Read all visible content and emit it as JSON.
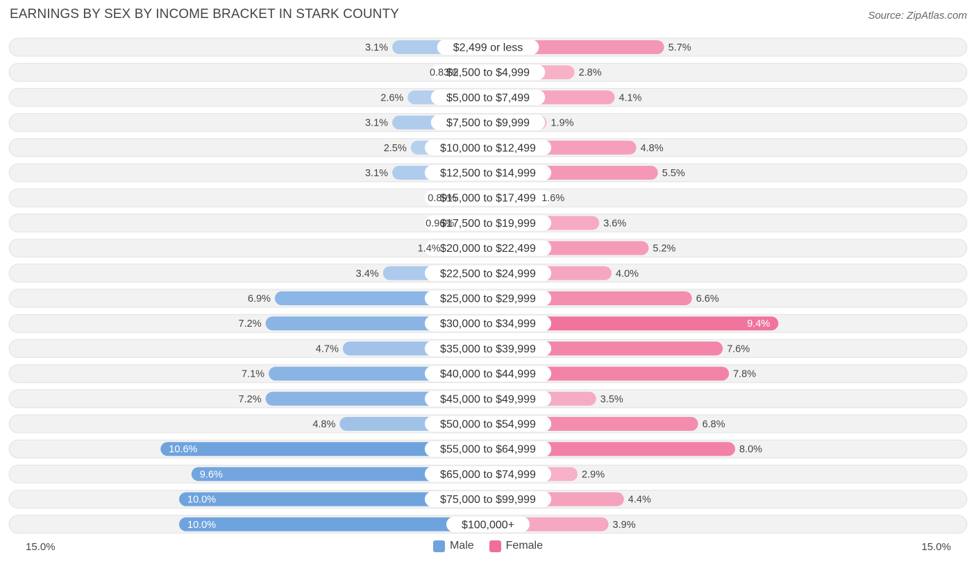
{
  "chart_data": {
    "type": "bar",
    "orientation": "horizontal-diverging",
    "title": "EARNINGS BY SEX BY INCOME BRACKET IN STARK COUNTY",
    "source": "Source: ZipAtlas.com",
    "categories": [
      "$2,499 or less",
      "$2,500 to $4,999",
      "$5,000 to $7,499",
      "$7,500 to $9,999",
      "$10,000 to $12,499",
      "$12,500 to $14,999",
      "$15,000 to $17,499",
      "$17,500 to $19,999",
      "$20,000 to $22,499",
      "$22,500 to $24,999",
      "$25,000 to $29,999",
      "$30,000 to $34,999",
      "$35,000 to $39,999",
      "$40,000 to $44,999",
      "$45,000 to $49,999",
      "$50,000 to $54,999",
      "$55,000 to $64,999",
      "$65,000 to $74,999",
      "$75,000 to $99,999",
      "$100,000+"
    ],
    "series": [
      {
        "name": "Male",
        "color": "#6fa3de",
        "values": [
          3.1,
          0.83,
          2.6,
          3.1,
          2.5,
          3.1,
          0.89,
          0.96,
          1.4,
          3.4,
          6.9,
          7.2,
          4.7,
          7.1,
          7.2,
          4.8,
          10.6,
          9.6,
          10.0,
          10.0
        ],
        "labels": [
          "3.1%",
          "0.83%",
          "2.6%",
          "3.1%",
          "2.5%",
          "3.1%",
          "0.89%",
          "0.96%",
          "1.4%",
          "3.4%",
          "6.9%",
          "7.2%",
          "4.7%",
          "7.1%",
          "7.2%",
          "4.8%",
          "10.6%",
          "9.6%",
          "10.0%",
          "10.0%"
        ]
      },
      {
        "name": "Female",
        "color": "#f06e98",
        "values": [
          5.7,
          2.8,
          4.1,
          1.9,
          4.8,
          5.5,
          1.6,
          3.6,
          5.2,
          4.0,
          6.6,
          9.4,
          7.6,
          7.8,
          3.5,
          6.8,
          8.0,
          2.9,
          4.4,
          3.9
        ],
        "labels": [
          "5.7%",
          "2.8%",
          "4.1%",
          "1.9%",
          "4.8%",
          "5.5%",
          "1.6%",
          "3.6%",
          "5.2%",
          "4.0%",
          "6.6%",
          "9.4%",
          "7.6%",
          "7.8%",
          "3.5%",
          "6.8%",
          "8.0%",
          "2.9%",
          "4.4%",
          "3.9%"
        ]
      }
    ],
    "xlim": [
      0,
      15.0
    ],
    "axis_min_label": "15.0%",
    "axis_max_label": "15.0%",
    "legend_position": "bottom-center"
  }
}
